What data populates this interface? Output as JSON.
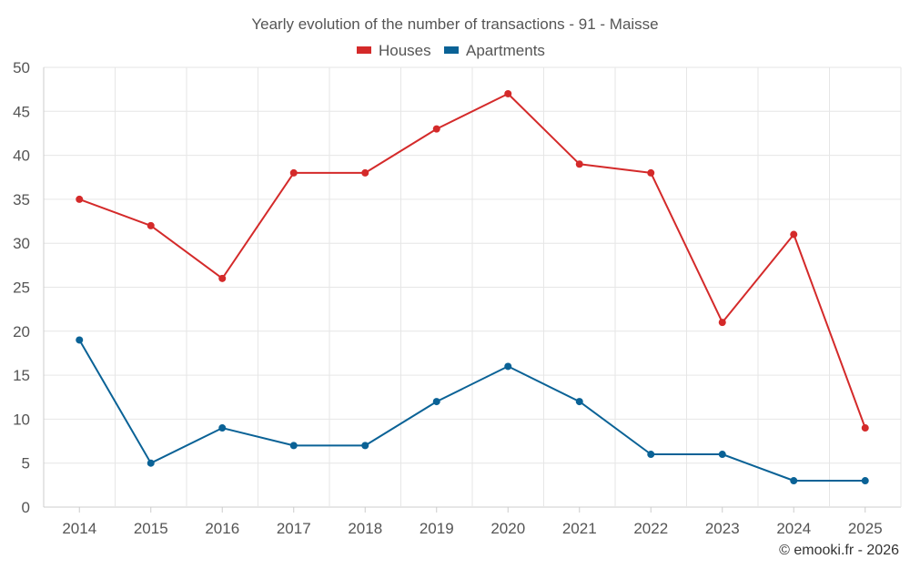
{
  "chart_data": {
    "type": "line",
    "title": "Yearly evolution of the number of transactions - 91 - Maisse",
    "categories": [
      "2014",
      "2015",
      "2016",
      "2017",
      "2018",
      "2019",
      "2020",
      "2021",
      "2022",
      "2023",
      "2024",
      "2025"
    ],
    "series": [
      {
        "name": "Houses",
        "color": "#d42a2a",
        "values": [
          35,
          32,
          26,
          38,
          38,
          43,
          47,
          39,
          38,
          21,
          31,
          9
        ]
      },
      {
        "name": "Apartments",
        "color": "#0a6296",
        "values": [
          19,
          5,
          9,
          7,
          7,
          12,
          16,
          12,
          6,
          6,
          3,
          3
        ]
      }
    ],
    "ylim": [
      0,
      50
    ],
    "yticks": [
      0,
      5,
      10,
      15,
      20,
      25,
      30,
      35,
      40,
      45,
      50
    ],
    "xlabel": "",
    "ylabel": "",
    "grid": true,
    "legend_position": "top-center"
  },
  "credit": "© emooki.fr - 2026"
}
